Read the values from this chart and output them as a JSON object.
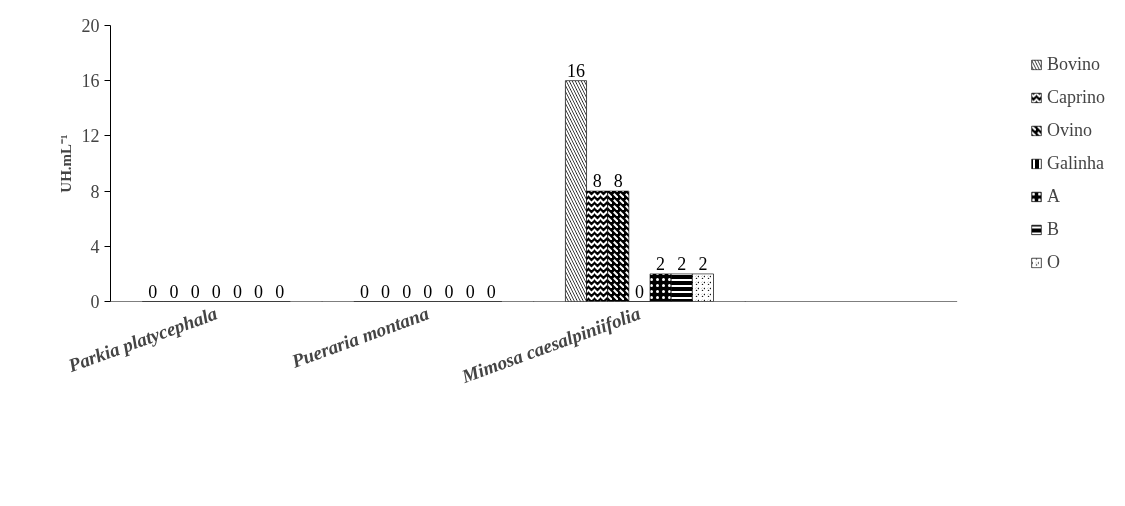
{
  "chart_data": {
    "type": "bar",
    "ylabel": "UH.mL⁻¹",
    "categories": [
      "Parkia platycephala",
      "Pueraria montana",
      "Mimosa caesalpiniifolia",
      null
    ],
    "ylim": [
      0,
      20
    ],
    "yticks": [
      0,
      4,
      8,
      12,
      16,
      20
    ],
    "grid": false,
    "legend": "right",
    "data_labels": true,
    "series": [
      {
        "name": "Bovino",
        "color": "#000000",
        "values": [
          0,
          0,
          16,
          null
        ]
      },
      {
        "name": "Caprino",
        "color": "#000000",
        "values": [
          0,
          0,
          8,
          null
        ]
      },
      {
        "name": "Ovino",
        "color": "#000000",
        "values": [
          0,
          0,
          8,
          null
        ]
      },
      {
        "name": "Galinha",
        "color": "#000000",
        "values": [
          0,
          0,
          0,
          null
        ]
      },
      {
        "name": "A",
        "color": "#000000",
        "values": [
          0,
          0,
          2,
          null
        ]
      },
      {
        "name": "B",
        "color": "#000000",
        "values": [
          0,
          0,
          2,
          null
        ]
      },
      {
        "name": "O",
        "color": "#000000",
        "values": [
          0,
          0,
          2,
          null
        ]
      }
    ]
  }
}
